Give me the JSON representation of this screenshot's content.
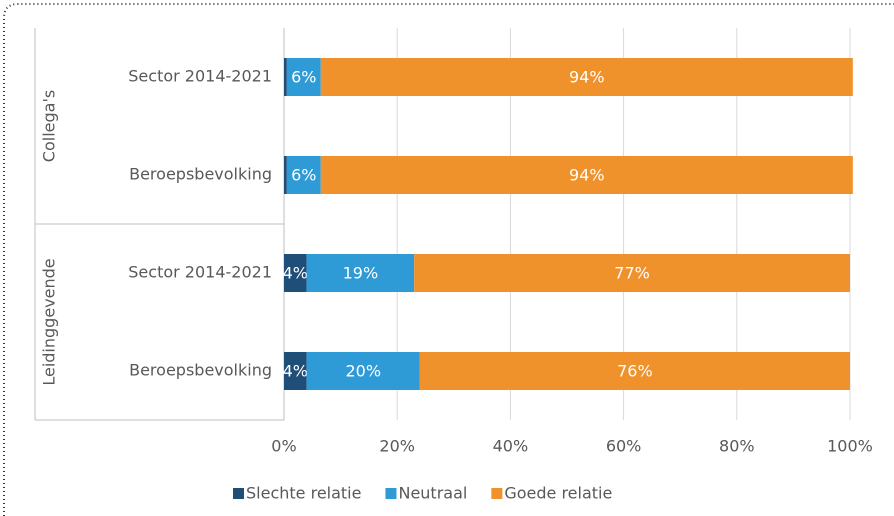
{
  "chart_data": {
    "type": "stacked-barh",
    "groups": [
      {
        "name": "Collega's",
        "categories": [
          "Sector 2014-2021",
          "Beroepsbevolking"
        ]
      },
      {
        "name": "Leidinggevende",
        "categories": [
          "Sector 2014-2021",
          "Beroepsbevolking"
        ]
      }
    ],
    "series": [
      {
        "name": "Slechte relatie",
        "color": "#1f4e79",
        "values": [
          0.5,
          0.5,
          4,
          4
        ],
        "value_labels": [
          null,
          null,
          "4%",
          "4%"
        ]
      },
      {
        "name": "Neutraal",
        "color": "#2e9ad6",
        "values": [
          6,
          6,
          19,
          20
        ],
        "value_labels": [
          "6%",
          "6%",
          "19%",
          "20%"
        ]
      },
      {
        "name": "Goede relatie",
        "color": "#f0922b",
        "values": [
          94,
          94,
          77,
          76
        ],
        "value_labels": [
          "94%",
          "94%",
          "77%",
          "76%"
        ]
      }
    ],
    "xlim": [
      0,
      100
    ],
    "xticks": [
      {
        "value": 0,
        "label": "0%"
      },
      {
        "value": 20,
        "label": "20%"
      },
      {
        "value": 40,
        "label": "40%"
      },
      {
        "value": 60,
        "label": "60%"
      },
      {
        "value": 80,
        "label": "80%"
      },
      {
        "value": 100,
        "label": "100%"
      }
    ],
    "grid": true,
    "legend": "bottom"
  }
}
